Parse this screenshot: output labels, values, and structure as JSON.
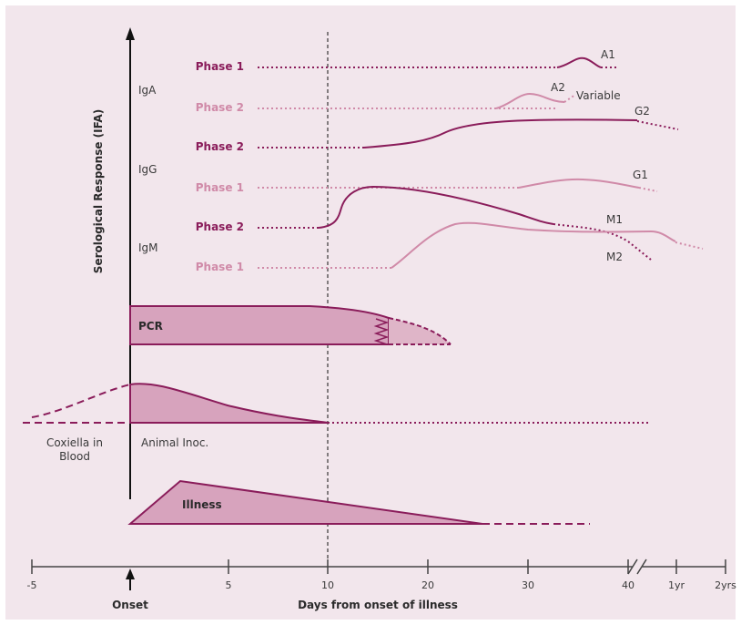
{
  "colors": {
    "background": "#f2e6ec",
    "dark": "#8a1c5a",
    "light": "#d08aa8",
    "fill": "#d7a3bd",
    "text": "#3a3a3a"
  },
  "y_axis": {
    "label": "Serological Response (IFA)"
  },
  "groups": {
    "iga": "IgA",
    "igg": "IgG",
    "igm": "IgM"
  },
  "phases": {
    "a1": "Phase 1",
    "a2": "Phase 2",
    "g2": "Phase 2",
    "g1": "Phase 1",
    "m2": "Phase 2",
    "m1": "Phase 1"
  },
  "curve_labels": {
    "a1": "A1",
    "a2": "A2",
    "variable": "Variable",
    "g2": "G2",
    "g1": "G1",
    "m1": "M1",
    "m2": "M2"
  },
  "regions": {
    "pcr": "PCR",
    "animal_inoc": "Animal Inoc.",
    "coxiella_line1": "Coxiella in",
    "coxiella_line2": "Blood",
    "illness": "Illness"
  },
  "x_axis": {
    "ticks": [
      "-5",
      "5",
      "10",
      "20",
      "30",
      "40",
      "1yr",
      "2yrs"
    ],
    "onset": "Onset",
    "label": "Days from onset of illness"
  }
}
